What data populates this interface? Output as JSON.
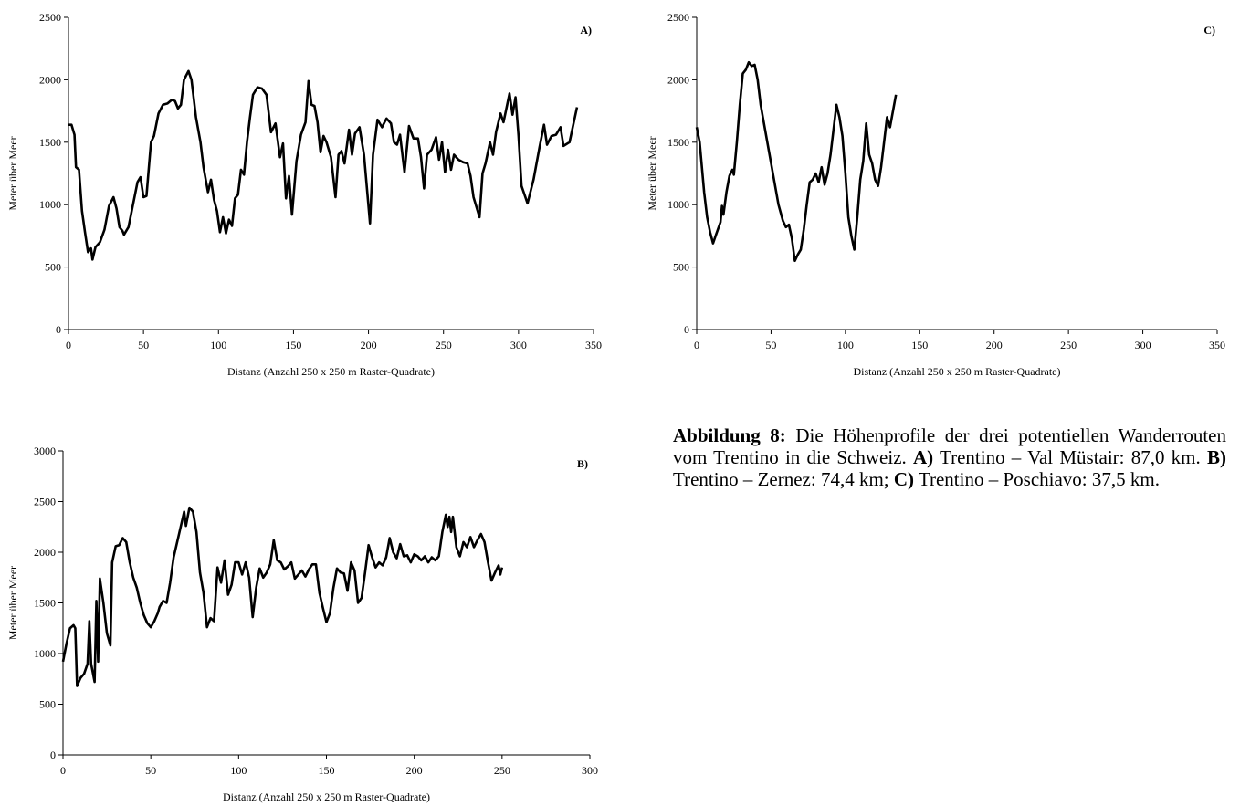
{
  "chart_data": [
    {
      "type": "line",
      "annotation": "A)",
      "ylabel": "Meter über Meer",
      "xlabel": "Distanz (Anzahl 250 x 250 m Raster-Quadrate)",
      "color": "#000000",
      "xlim": [
        0,
        350
      ],
      "ylim": [
        0,
        2500
      ],
      "xticks": [
        0,
        50,
        100,
        150,
        200,
        250,
        300,
        350
      ],
      "yticks": [
        0,
        500,
        1000,
        1500,
        2000,
        2500
      ],
      "x": [
        0,
        2,
        4,
        5,
        7,
        9,
        11,
        13,
        15,
        16,
        18,
        21,
        24,
        27,
        30,
        32,
        34,
        36,
        37,
        40,
        43,
        46,
        48,
        50,
        52,
        55,
        57,
        60,
        63,
        66,
        69,
        71,
        73,
        75,
        77,
        80,
        82,
        85,
        88,
        90,
        93,
        95,
        97,
        99,
        101,
        103,
        105,
        107,
        109,
        111,
        113,
        115,
        117,
        119,
        121,
        123,
        126,
        129,
        132,
        135,
        138,
        141,
        143,
        145,
        147,
        149,
        152,
        155,
        158,
        160,
        162,
        164,
        166,
        168,
        170,
        172,
        175,
        178,
        180,
        182,
        184,
        187,
        189,
        191,
        194,
        197,
        201,
        203,
        206,
        209,
        212,
        215,
        217,
        219,
        221,
        224,
        227,
        230,
        233,
        235,
        237,
        239,
        242,
        245,
        247,
        249,
        251,
        253,
        255,
        257,
        260,
        263,
        266,
        268,
        270,
        274,
        276,
        278,
        281,
        283,
        285,
        288,
        290,
        294,
        296,
        298,
        300,
        302,
        304,
        306,
        310,
        314,
        317,
        319,
        322,
        325,
        328,
        330,
        334,
        339
      ],
      "values": [
        1640,
        1640,
        1560,
        1300,
        1280,
        950,
        780,
        620,
        650,
        560,
        660,
        700,
        800,
        990,
        1060,
        970,
        820,
        790,
        760,
        820,
        1000,
        1180,
        1220,
        1060,
        1070,
        1500,
        1550,
        1730,
        1800,
        1810,
        1840,
        1830,
        1770,
        1800,
        2000,
        2070,
        2000,
        1700,
        1500,
        1300,
        1100,
        1200,
        1040,
        950,
        780,
        900,
        770,
        880,
        830,
        1050,
        1080,
        1280,
        1240,
        1500,
        1700,
        1880,
        1940,
        1930,
        1880,
        1580,
        1650,
        1380,
        1490,
        1050,
        1230,
        920,
        1350,
        1560,
        1660,
        1990,
        1800,
        1790,
        1660,
        1420,
        1550,
        1500,
        1380,
        1060,
        1400,
        1430,
        1330,
        1600,
        1400,
        1570,
        1620,
        1400,
        850,
        1400,
        1680,
        1620,
        1690,
        1650,
        1500,
        1480,
        1560,
        1260,
        1630,
        1530,
        1530,
        1380,
        1130,
        1400,
        1440,
        1540,
        1360,
        1500,
        1260,
        1440,
        1280,
        1400,
        1360,
        1340,
        1330,
        1230,
        1060,
        900,
        1250,
        1330,
        1500,
        1400,
        1580,
        1730,
        1660,
        1890,
        1720,
        1860,
        1550,
        1150,
        1080,
        1010,
        1200,
        1460,
        1640,
        1480,
        1550,
        1560,
        1620,
        1470,
        1500,
        1780
      ]
    },
    {
      "type": "line",
      "annotation": "B)",
      "ylabel": "Meter über Meer",
      "xlabel": "Distanz (Anzahl 250 x 250 m Raster-Quadrate)",
      "color": "#000000",
      "xlim": [
        0,
        300
      ],
      "ylim": [
        0,
        3000
      ],
      "xticks": [
        0,
        50,
        100,
        150,
        200,
        250,
        300
      ],
      "yticks": [
        0,
        500,
        1000,
        1500,
        2000,
        2500,
        3000
      ],
      "x": [
        0,
        2,
        4,
        6,
        7,
        8,
        10,
        12,
        14,
        15,
        16,
        18,
        19,
        20,
        21,
        23,
        25,
        27,
        28,
        30,
        32,
        34,
        36,
        38,
        40,
        42,
        44,
        46,
        48,
        50,
        52,
        54,
        55,
        57,
        59,
        61,
        63,
        65,
        67,
        69,
        70,
        72,
        74,
        76,
        78,
        80,
        82,
        84,
        86,
        88,
        90,
        92,
        94,
        96,
        98,
        100,
        102,
        104,
        106,
        108,
        110,
        112,
        114,
        116,
        118,
        120,
        122,
        124,
        126,
        128,
        130,
        132,
        134,
        136,
        138,
        140,
        142,
        144,
        146,
        148,
        150,
        152,
        154,
        156,
        158,
        160,
        162,
        164,
        166,
        168,
        170,
        172,
        174,
        176,
        178,
        180,
        182,
        184,
        186,
        188,
        190,
        192,
        194,
        196,
        198,
        200,
        202,
        204,
        206,
        208,
        210,
        212,
        214,
        216,
        218,
        219,
        220,
        221,
        222,
        224,
        226,
        228,
        230,
        232,
        234,
        236,
        238,
        240,
        242,
        244,
        246,
        248,
        249,
        250
      ],
      "values": [
        920,
        1100,
        1250,
        1280,
        1250,
        680,
        760,
        800,
        900,
        1320,
        900,
        720,
        1520,
        920,
        1740,
        1500,
        1200,
        1080,
        1900,
        2060,
        2070,
        2140,
        2100,
        1900,
        1750,
        1650,
        1500,
        1380,
        1300,
        1260,
        1320,
        1400,
        1460,
        1520,
        1500,
        1700,
        1950,
        2100,
        2250,
        2400,
        2260,
        2440,
        2400,
        2200,
        1800,
        1600,
        1260,
        1350,
        1320,
        1850,
        1700,
        1920,
        1580,
        1680,
        1900,
        1900,
        1780,
        1900,
        1750,
        1360,
        1650,
        1840,
        1750,
        1800,
        1880,
        2120,
        1920,
        1900,
        1830,
        1860,
        1900,
        1740,
        1780,
        1820,
        1760,
        1830,
        1880,
        1880,
        1600,
        1450,
        1310,
        1400,
        1650,
        1840,
        1800,
        1790,
        1620,
        1900,
        1820,
        1500,
        1550,
        1800,
        2070,
        1950,
        1850,
        1900,
        1870,
        1950,
        2140,
        2000,
        1940,
        2080,
        1960,
        1970,
        1900,
        1980,
        1960,
        1920,
        1960,
        1900,
        1950,
        1920,
        1960,
        2200,
        2370,
        2250,
        2350,
        2200,
        2350,
        2050,
        1960,
        2100,
        2050,
        2150,
        2050,
        2120,
        2180,
        2100,
        1900,
        1720,
        1800,
        1870,
        1780,
        1850
      ]
    },
    {
      "type": "line",
      "annotation": "C)",
      "ylabel": "Meter über Meer",
      "xlabel": "Distanz (Anzahl 250 x 250 m Raster-Quadrate)",
      "color": "#000000",
      "xlim": [
        0,
        350
      ],
      "ylim": [
        0,
        2500
      ],
      "xticks": [
        0,
        50,
        100,
        150,
        200,
        250,
        300,
        350
      ],
      "yticks": [
        0,
        500,
        1000,
        1500,
        2000,
        2500
      ],
      "x": [
        0,
        2,
        5,
        7,
        9,
        11,
        13,
        16,
        17,
        18,
        20,
        22,
        24,
        25,
        27,
        29,
        31,
        33,
        35,
        37,
        39,
        41,
        43,
        46,
        49,
        52,
        55,
        58,
        60,
        62,
        64,
        66,
        68,
        70,
        72,
        74,
        76,
        78,
        80,
        82,
        84,
        86,
        88,
        90,
        92,
        94,
        96,
        98,
        100,
        102,
        104,
        106,
        108,
        110,
        112,
        114,
        116,
        118,
        120,
        122,
        124,
        126,
        128,
        130,
        132,
        134
      ],
      "values": [
        1620,
        1500,
        1100,
        900,
        780,
        690,
        760,
        860,
        990,
        920,
        1100,
        1230,
        1280,
        1240,
        1500,
        1800,
        2050,
        2080,
        2140,
        2110,
        2120,
        2000,
        1800,
        1600,
        1400,
        1200,
        1000,
        870,
        820,
        840,
        730,
        550,
        600,
        640,
        800,
        1000,
        1180,
        1200,
        1250,
        1180,
        1300,
        1160,
        1250,
        1400,
        1600,
        1800,
        1700,
        1550,
        1250,
        900,
        750,
        640,
        900,
        1200,
        1350,
        1650,
        1400,
        1330,
        1200,
        1150,
        1300,
        1500,
        1700,
        1620,
        1750,
        1880
      ]
    }
  ],
  "caption": [
    {
      "text": "Abbildung 8:",
      "bold": true
    },
    {
      "text": " Die Höhenprofile der drei potentiellen Wanderrouten vom Trentino in die Schweiz. ",
      "bold": false
    },
    {
      "text": "A)",
      "bold": true
    },
    {
      "text": " Trentino – Val Müstair: 87,0 km. ",
      "bold": false
    },
    {
      "text": "B)",
      "bold": true
    },
    {
      "text": " Trentino – Zernez: 74,4 km; ",
      "bold": false
    },
    {
      "text": "C)",
      "bold": true
    },
    {
      "text": " Trentino – Poschiavo: 37,5 km.",
      "bold": false
    }
  ]
}
